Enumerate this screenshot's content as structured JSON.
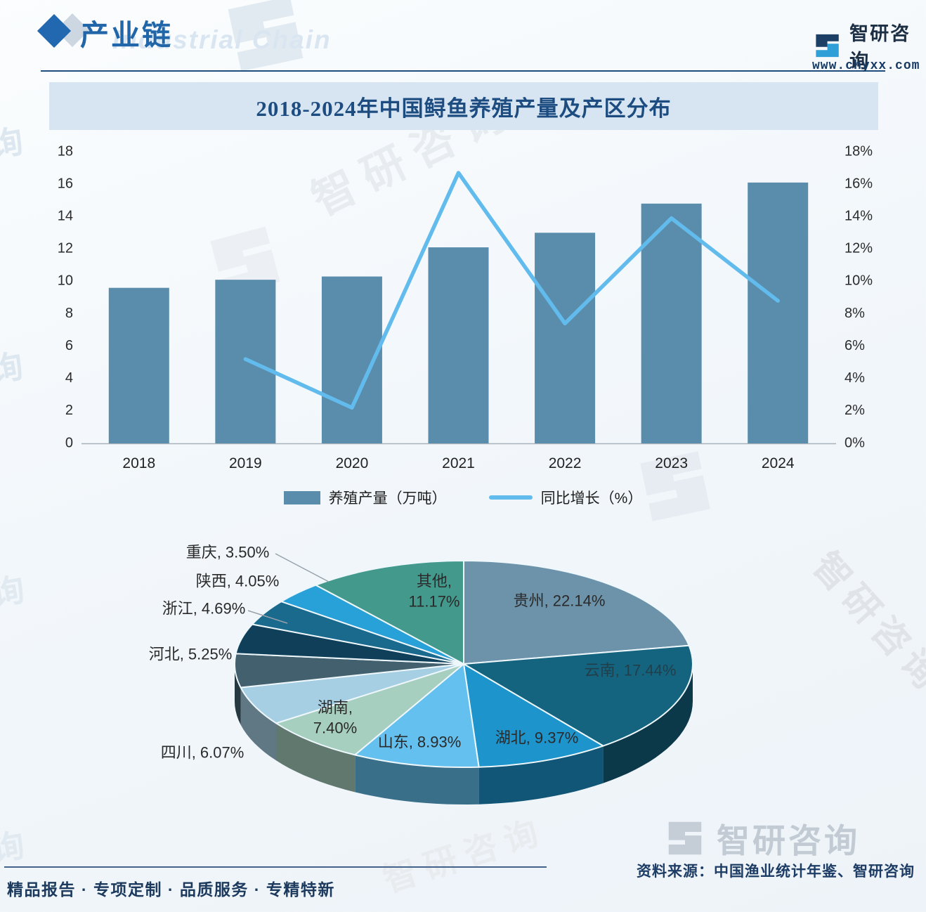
{
  "header": {
    "section_title": "产业链",
    "section_title_en_watermark": "Industrial Chain",
    "brand": {
      "name": "智研咨询",
      "website": "www.chyxx.com"
    }
  },
  "chart": {
    "title": "2018-2024年中国鲟鱼养殖产量及产区分布"
  },
  "chart_data": [
    {
      "type": "bar",
      "subtype": "bar-line-combo",
      "title": "2018-2024年中国鲟鱼养殖产量及产区分布",
      "categories": [
        "2018",
        "2019",
        "2020",
        "2021",
        "2022",
        "2023",
        "2024"
      ],
      "series": [
        {
          "name": "养殖产量（万吨）",
          "type": "bar",
          "color": "#5a8cab",
          "values": [
            9.6,
            10.1,
            10.3,
            12.1,
            13.0,
            14.8,
            16.1
          ]
        },
        {
          "name": "同比增长（%）",
          "type": "line",
          "color": "#62bbed",
          "categories": [
            "2019",
            "2020",
            "2021",
            "2022",
            "2023",
            "2024"
          ],
          "values": [
            5.2,
            2.2,
            16.7,
            7.4,
            13.9,
            8.8
          ]
        }
      ],
      "left_axis": {
        "min": 0,
        "max": 18,
        "step": 2,
        "ticks": [
          "0",
          "2",
          "4",
          "6",
          "8",
          "10",
          "12",
          "14",
          "16",
          "18"
        ]
      },
      "right_axis": {
        "min": 0,
        "max": 18,
        "step": 2,
        "ticks": [
          "0%",
          "2%",
          "4%",
          "6%",
          "8%",
          "10%",
          "12%",
          "14%",
          "16%",
          "18%"
        ]
      },
      "grid": false,
      "legend_position": "bottom"
    },
    {
      "type": "pie",
      "style": "3d",
      "labels": [
        "贵州",
        "云南",
        "湖北",
        "山东",
        "湖南",
        "四川",
        "河北",
        "浙江",
        "陕西",
        "重庆",
        "其他"
      ],
      "values": [
        22.14,
        17.44,
        9.37,
        8.93,
        7.4,
        6.07,
        5.25,
        4.69,
        4.05,
        3.5,
        11.17
      ],
      "colors": [
        "#6c93a9",
        "#14637f",
        "#1d94cb",
        "#64c0ee",
        "#a7cfc0",
        "#a6cfe3",
        "#42606e",
        "#0f3f59",
        "#1a6a8e",
        "#28a0d8",
        "#43998c"
      ],
      "label_format": "{name}, {value}%"
    }
  ],
  "footer": {
    "source": "资料来源：中国渔业统计年鉴、智研咨询",
    "slogan": "精品报告 · 专项定制 · 品质服务 · 专精特新",
    "brand_watermark": "智研咨询"
  },
  "watermarks": {
    "brand_text": "智研咨询",
    "edge_char": "询"
  }
}
